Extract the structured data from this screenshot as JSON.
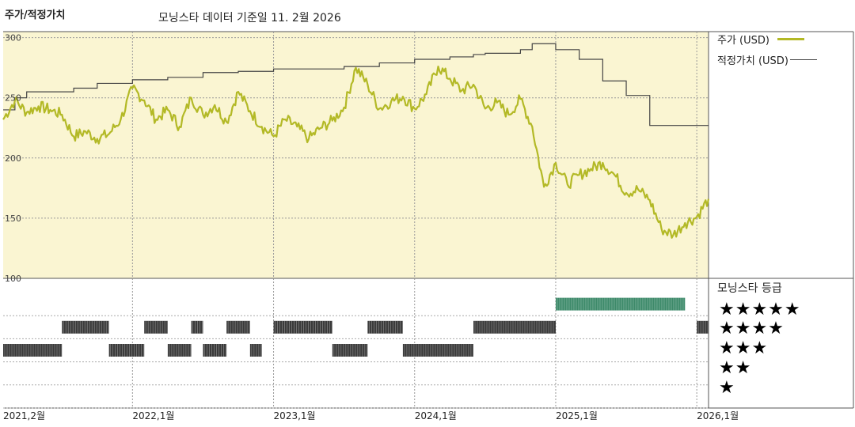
{
  "header": {
    "title": "주가/적정가치",
    "subtitle": "모닝스타 데이터 기준일 11. 2월 2026"
  },
  "legend": {
    "price_label": "주가 (USD)",
    "fair_value_label": "적정가치 (USD)",
    "price_color": "#b3b926",
    "fair_value_color": "#444444"
  },
  "rating_panel": {
    "title": "모닝스타 등급",
    "stars": [
      "★★★★★",
      "★★★★",
      "★★★",
      "★★",
      "★"
    ],
    "five_star_color": "#3d8a6a",
    "other_star_color": "#3a3a3a"
  },
  "chart_data": {
    "type": "line",
    "x_axis": {
      "start": "2021-02",
      "end": "2026-02",
      "tick_labels": [
        "2021,2월",
        "2022,1월",
        "2023,1월",
        "2024,1월",
        "2025,1월",
        "2026,1월"
      ],
      "tick_dates": [
        "2021-02",
        "2022-01",
        "2023-01",
        "2024-01",
        "2025-01",
        "2026-01"
      ]
    },
    "y_axis": {
      "ticks": [
        300,
        250,
        200,
        150,
        100
      ],
      "ylim": [
        100,
        305
      ]
    },
    "grid": true,
    "legend_position": "right",
    "series": [
      {
        "name": "주가 (USD)",
        "x": [
          "2021-02",
          "2021-03",
          "2021-04",
          "2021-05",
          "2021-06",
          "2021-07",
          "2021-08",
          "2021-09",
          "2021-10",
          "2021-11",
          "2021-12",
          "2022-01",
          "2022-02",
          "2022-03",
          "2022-04",
          "2022-05",
          "2022-06",
          "2022-07",
          "2022-08",
          "2022-09",
          "2022-10",
          "2022-11",
          "2022-12",
          "2023-01",
          "2023-02",
          "2023-03",
          "2023-04",
          "2023-05",
          "2023-06",
          "2023-07",
          "2023-08",
          "2023-09",
          "2023-10",
          "2023-11",
          "2023-12",
          "2024-01",
          "2024-02",
          "2024-03",
          "2024-04",
          "2024-05",
          "2024-06",
          "2024-07",
          "2024-08",
          "2024-09",
          "2024-10",
          "2024-11",
          "2024-12",
          "2025-01",
          "2025-02",
          "2025-03",
          "2025-04",
          "2025-05",
          "2025-06",
          "2025-07",
          "2025-08",
          "2025-09",
          "2025-10",
          "2025-11",
          "2025-12",
          "2026-01",
          "2026-02"
        ],
        "y": [
          232,
          248,
          238,
          243,
          240,
          236,
          218,
          222,
          216,
          220,
          232,
          258,
          248,
          232,
          240,
          226,
          250,
          236,
          244,
          230,
          255,
          239,
          226,
          218,
          232,
          226,
          216,
          225,
          231,
          242,
          275,
          261,
          241,
          247,
          251,
          241,
          253,
          276,
          266,
          256,
          261,
          241,
          246,
          236,
          249,
          226,
          176,
          196,
          178,
          186,
          191,
          196,
          186,
          171,
          174,
          165,
          141,
          136,
          146,
          151,
          166
        ]
      },
      {
        "name": "적정가치 (USD)",
        "step": true,
        "x": [
          "2021-02",
          "2021-03",
          "2021-04",
          "2021-08",
          "2021-10",
          "2022-01",
          "2022-04",
          "2022-07",
          "2022-10",
          "2023-01",
          "2023-07",
          "2023-10",
          "2024-01",
          "2024-04",
          "2024-06",
          "2024-07",
          "2024-10",
          "2024-11",
          "2025-01",
          "2025-03",
          "2025-05",
          "2025-07",
          "2025-09",
          "2026-02"
        ],
        "y": [
          240,
          250,
          255,
          258,
          262,
          265,
          267,
          271,
          272,
          274,
          276,
          279,
          282,
          284,
          286,
          287,
          290,
          295,
          290,
          282,
          264,
          252,
          227,
          227
        ]
      }
    ],
    "ratings": {
      "levels": [
        5,
        4,
        3,
        2,
        1
      ],
      "periods": [
        {
          "stars": 3,
          "start": "2021-02",
          "end": "2021-07"
        },
        {
          "stars": 4,
          "start": "2021-07",
          "end": "2021-11"
        },
        {
          "stars": 3,
          "start": "2021-11",
          "end": "2022-02"
        },
        {
          "stars": 4,
          "start": "2022-02",
          "end": "2022-04"
        },
        {
          "stars": 3,
          "start": "2022-04",
          "end": "2022-06"
        },
        {
          "stars": 4,
          "start": "2022-06",
          "end": "2022-07"
        },
        {
          "stars": 3,
          "start": "2022-07",
          "end": "2022-09"
        },
        {
          "stars": 4,
          "start": "2022-09",
          "end": "2022-11"
        },
        {
          "stars": 3,
          "start": "2022-11",
          "end": "2022-12"
        },
        {
          "stars": 4,
          "start": "2023-01",
          "end": "2023-06"
        },
        {
          "stars": 3,
          "start": "2023-06",
          "end": "2023-09"
        },
        {
          "stars": 4,
          "start": "2023-09",
          "end": "2023-12"
        },
        {
          "stars": 3,
          "start": "2023-12",
          "end": "2024-06"
        },
        {
          "stars": 4,
          "start": "2024-06",
          "end": "2025-01"
        },
        {
          "stars": 5,
          "start": "2025-01",
          "end": "2025-12"
        },
        {
          "stars": 4,
          "start": "2026-01",
          "end": "2026-02"
        }
      ]
    }
  }
}
